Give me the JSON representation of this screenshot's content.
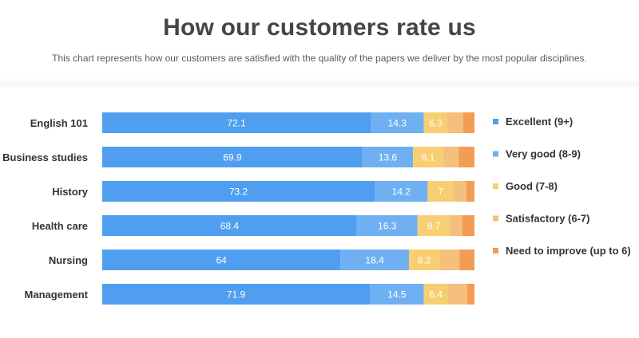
{
  "header": {
    "title": "How our customers rate us",
    "subtitle": "This chart represents how our customers are satisfied with the quality of the papers we deliver by the most popular disciplines."
  },
  "chart_data": {
    "type": "bar",
    "orientation": "horizontal",
    "stacked": true,
    "categories": [
      "English 101",
      "Business studies",
      "History",
      "Health care",
      "Nursing",
      "Management"
    ],
    "series": [
      {
        "name": "Excellent (9+)",
        "color": "#4f9ef0",
        "values": [
          72.1,
          69.9,
          73.2,
          68.4,
          64,
          71.9
        ],
        "labels": [
          "72.1",
          "69.9",
          "73.2",
          "68.4",
          "64",
          "71.9"
        ]
      },
      {
        "name": "Very good (8-9)",
        "color": "#6fb0f2",
        "values": [
          14.3,
          13.6,
          14.2,
          16.3,
          18.4,
          14.5
        ],
        "labels": [
          "14.3",
          "13.6",
          "14.2",
          "16.3",
          "18.4",
          "14.5"
        ]
      },
      {
        "name": "Good (7-8)",
        "color": "#f7cf72",
        "values": [
          6.3,
          8.1,
          7,
          8.7,
          8.2,
          6.4
        ],
        "labels": [
          "6.3",
          "8.1",
          "7",
          "8.7",
          "8.2",
          "6.4"
        ]
      },
      {
        "name": "Satisfactory (6-7)",
        "color": "#f5bf7c",
        "values": [
          4.3,
          4.2,
          3.4,
          3.3,
          5.4,
          5.2
        ],
        "labels": [
          "",
          "",
          "",
          "",
          "",
          ""
        ]
      },
      {
        "name": "Need to improve (up to 6)",
        "color": "#f39c54",
        "values": [
          3,
          4.2,
          2.2,
          3.3,
          4,
          2
        ],
        "labels": [
          "",
          "",
          "",
          "",
          "",
          ""
        ]
      }
    ],
    "xlim": [
      0,
      100
    ],
    "legend": "right",
    "grid": false
  }
}
